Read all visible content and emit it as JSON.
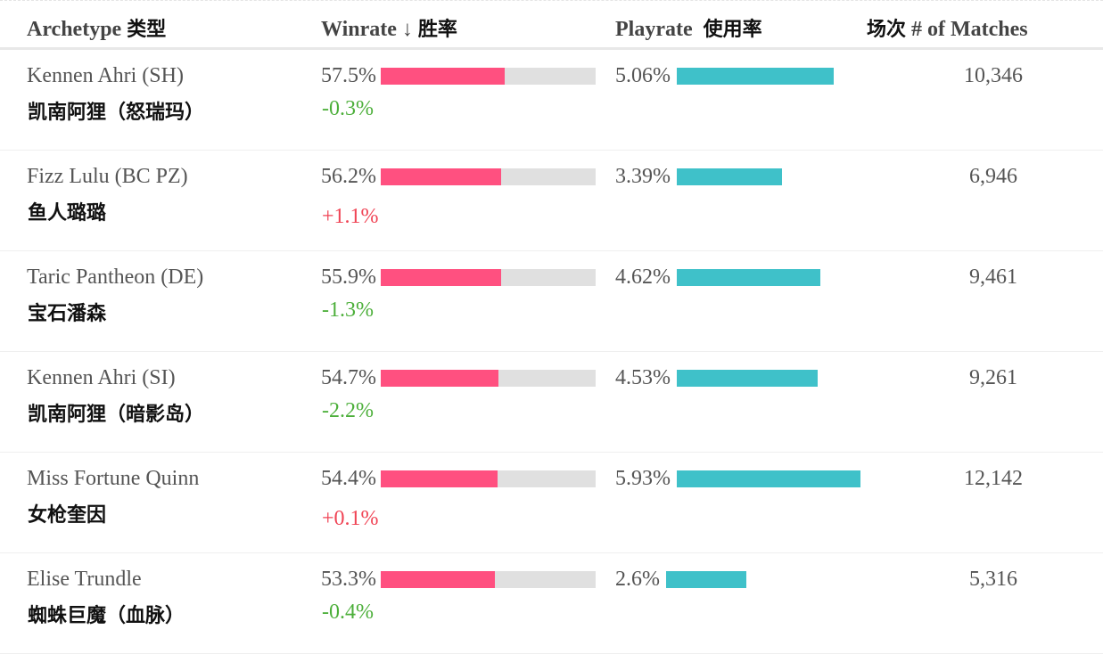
{
  "header": {
    "archetype": "Archetype",
    "archetype_cn": "类型",
    "winrate": "Winrate ↓",
    "winrate_cn": "胜率",
    "playrate": "Playrate",
    "playrate_cn": "使用率",
    "matches_cn": "场次",
    "matches": "# of Matches"
  },
  "colors": {
    "winrate_bar": "#ff5080",
    "winrate_track": "#e0e0e0",
    "playrate_bar": "#3fc1c9",
    "delta_negative": "#4caf3a",
    "delta_positive": "#f04455"
  },
  "rows": [
    {
      "name": "Kennen Ahri (SH)",
      "name_cn": "凯南阿狸（怒瑞玛）",
      "winrate": "57.5%",
      "winrate_value": 57.5,
      "delta": "-0.3%",
      "playrate": "5.06%",
      "playrate_value": 5.06,
      "matches": "10,346"
    },
    {
      "name": "Fizz Lulu (BC PZ)",
      "name_cn": "鱼人璐璐",
      "winrate": "56.2%",
      "winrate_value": 56.2,
      "delta": "+1.1%",
      "playrate": "3.39%",
      "playrate_value": 3.39,
      "matches": "6,946"
    },
    {
      "name": "Taric Pantheon (DE)",
      "name_cn": "宝石潘森",
      "winrate": "55.9%",
      "winrate_value": 55.9,
      "delta": "-1.3%",
      "playrate": "4.62%",
      "playrate_value": 4.62,
      "matches": "9,461"
    },
    {
      "name": "Kennen Ahri (SI)",
      "name_cn": "凯南阿狸（暗影岛）",
      "winrate": "54.7%",
      "winrate_value": 54.7,
      "delta": "-2.2%",
      "playrate": "4.53%",
      "playrate_value": 4.53,
      "matches": "9,261"
    },
    {
      "name": "Miss Fortune Quinn",
      "name_cn": "女枪奎因",
      "winrate": "54.4%",
      "winrate_value": 54.4,
      "delta": "+0.1%",
      "playrate": "5.93%",
      "playrate_value": 5.93,
      "matches": "12,142"
    },
    {
      "name": "Elise Trundle",
      "name_cn": "蜘蛛巨魔（血脉）",
      "winrate": "53.3%",
      "winrate_value": 53.3,
      "delta": "-0.4%",
      "playrate": "2.6%",
      "playrate_value": 2.6,
      "matches": "5,316"
    }
  ]
}
